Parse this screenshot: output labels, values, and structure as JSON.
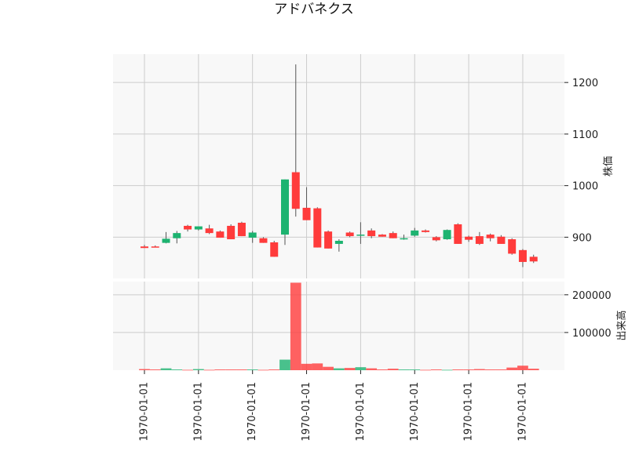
{
  "chart_data": {
    "type": "candlestick",
    "title": "アドバネクス",
    "price_axis": {
      "label": "株価",
      "ticks": [
        900,
        1000,
        1100,
        1200
      ],
      "ylim": [
        820,
        1255
      ]
    },
    "volume_axis": {
      "label": "出来高",
      "ticks": [
        100000,
        200000
      ],
      "ylim": [
        0,
        235000
      ]
    },
    "x_tick_labels": [
      "1970-01-01",
      "1970-01-01",
      "1970-01-01",
      "1970-01-01",
      "1970-01-01",
      "1970-01-01",
      "1970-01-01",
      "1970-01-01"
    ],
    "colors": {
      "up": "#1db370",
      "down": "#ff3b3b",
      "wick": "#555555",
      "grid": "#cccccc",
      "panel": "#f8f8f8"
    },
    "candles": [
      {
        "open": 882,
        "high": 885,
        "low": 879,
        "close": 879,
        "volume": 3000
      },
      {
        "open": 882,
        "high": 884,
        "low": 881,
        "close": 881,
        "volume": 2000
      },
      {
        "open": 889,
        "high": 910,
        "low": 888,
        "close": 897,
        "volume": 5000
      },
      {
        "open": 898,
        "high": 912,
        "low": 888,
        "close": 908,
        "volume": 2000
      },
      {
        "open": 922,
        "high": 924,
        "low": 911,
        "close": 915,
        "volume": 1000
      },
      {
        "open": 915,
        "high": 921,
        "low": 913,
        "close": 921,
        "volume": 3000
      },
      {
        "open": 917,
        "high": 924,
        "low": 906,
        "close": 908,
        "volume": 1000
      },
      {
        "open": 911,
        "high": 913,
        "low": 899,
        "close": 899,
        "volume": 2000
      },
      {
        "open": 922,
        "high": 925,
        "low": 896,
        "close": 896,
        "volume": 2000
      },
      {
        "open": 928,
        "high": 930,
        "low": 902,
        "close": 902,
        "volume": 2000
      },
      {
        "open": 899,
        "high": 912,
        "low": 889,
        "close": 909,
        "volume": 2000
      },
      {
        "open": 898,
        "high": 900,
        "low": 889,
        "close": 889,
        "volume": 1000
      },
      {
        "open": 890,
        "high": 893,
        "low": 862,
        "close": 862,
        "volume": 2000
      },
      {
        "open": 905,
        "high": 1012,
        "low": 885,
        "close": 1012,
        "volume": 28000
      },
      {
        "open": 1026,
        "high": 1235,
        "low": 940,
        "close": 955,
        "volume": 232000
      },
      {
        "open": 957,
        "high": 997,
        "low": 933,
        "close": 933,
        "volume": 17000
      },
      {
        "open": 956,
        "high": 958,
        "low": 880,
        "close": 880,
        "volume": 18000
      },
      {
        "open": 911,
        "high": 913,
        "low": 878,
        "close": 878,
        "volume": 9000
      },
      {
        "open": 887,
        "high": 896,
        "low": 872,
        "close": 893,
        "volume": 5000
      },
      {
        "open": 909,
        "high": 911,
        "low": 900,
        "close": 902,
        "volume": 6000
      },
      {
        "open": 905,
        "high": 929,
        "low": 887,
        "close": 905,
        "volume": 8000
      },
      {
        "open": 913,
        "high": 917,
        "low": 898,
        "close": 902,
        "volume": 5000
      },
      {
        "open": 905,
        "high": 906,
        "low": 901,
        "close": 901,
        "volume": 2000
      },
      {
        "open": 908,
        "high": 911,
        "low": 898,
        "close": 898,
        "volume": 4000
      },
      {
        "open": 898,
        "high": 905,
        "low": 895,
        "close": 898,
        "volume": 2000
      },
      {
        "open": 903,
        "high": 918,
        "low": 901,
        "close": 913,
        "volume": 2000
      },
      {
        "open": 913,
        "high": 915,
        "low": 909,
        "close": 910,
        "volume": 1000
      },
      {
        "open": 900,
        "high": 902,
        "low": 892,
        "close": 894,
        "volume": 2000
      },
      {
        "open": 896,
        "high": 915,
        "low": 895,
        "close": 914,
        "volume": 1000
      },
      {
        "open": 925,
        "high": 927,
        "low": 887,
        "close": 887,
        "volume": 2000
      },
      {
        "open": 901,
        "high": 903,
        "low": 891,
        "close": 895,
        "volume": 2000
      },
      {
        "open": 902,
        "high": 910,
        "low": 885,
        "close": 887,
        "volume": 3000
      },
      {
        "open": 905,
        "high": 907,
        "low": 892,
        "close": 898,
        "volume": 2000
      },
      {
        "open": 901,
        "high": 904,
        "low": 887,
        "close": 887,
        "volume": 2000
      },
      {
        "open": 896,
        "high": 898,
        "low": 866,
        "close": 868,
        "volume": 7000
      },
      {
        "open": 875,
        "high": 877,
        "low": 842,
        "close": 852,
        "volume": 12000
      },
      {
        "open": 862,
        "high": 866,
        "low": 850,
        "close": 853,
        "volume": 4000
      }
    ]
  }
}
